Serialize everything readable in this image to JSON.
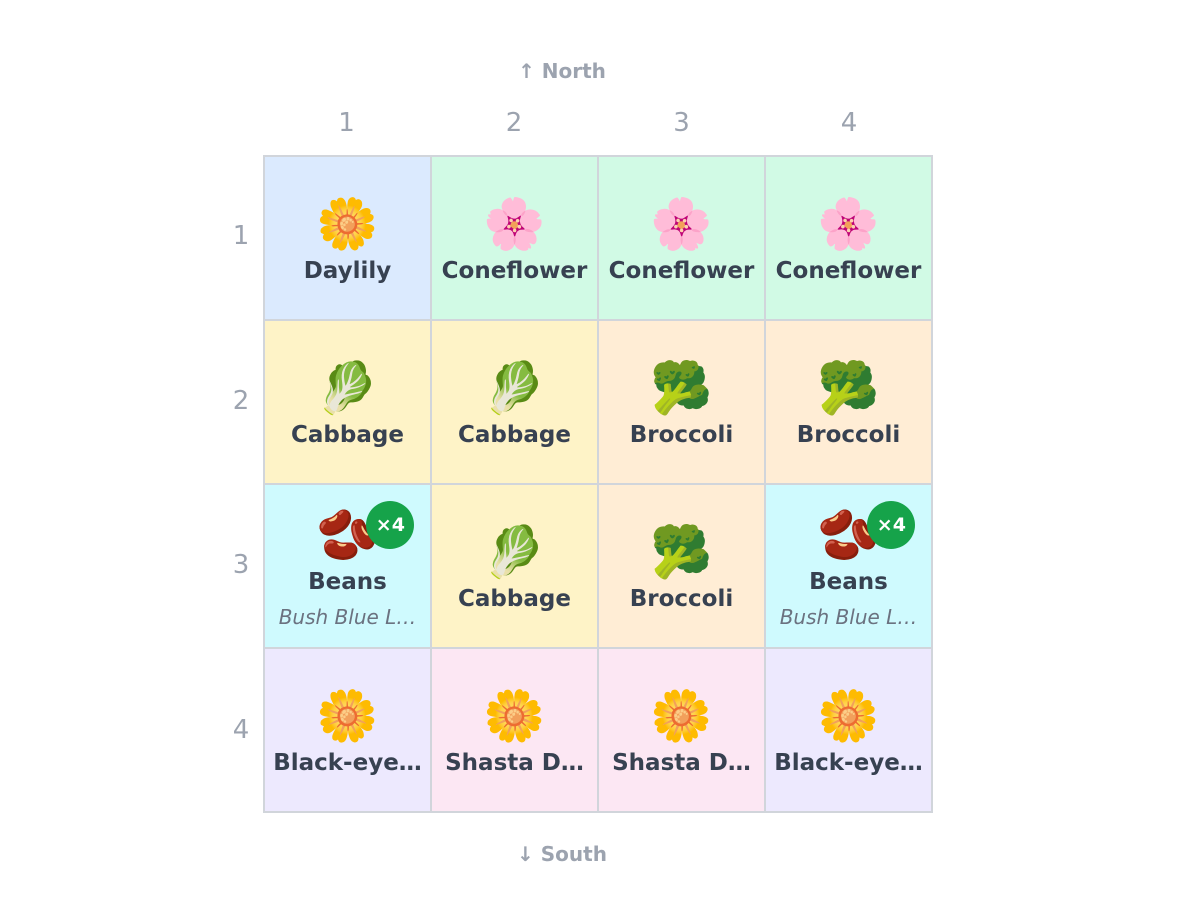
{
  "compass": {
    "north": "↑ North",
    "south": "↓ South"
  },
  "columns": [
    "1",
    "2",
    "3",
    "4"
  ],
  "rows": [
    {
      "label": "1",
      "cells": [
        {
          "icon": "🌼",
          "name": "Daylily",
          "color": "#dbeafe"
        },
        {
          "icon": "🌸",
          "name": "Coneflower",
          "color": "#d1fae5"
        },
        {
          "icon": "🌸",
          "name": "Coneflower",
          "color": "#d1fae5"
        },
        {
          "icon": "🌸",
          "name": "Coneflower",
          "color": "#d1fae5"
        }
      ]
    },
    {
      "label": "2",
      "cells": [
        {
          "icon": "🥬",
          "name": "Cabbage",
          "color": "#fef3c7"
        },
        {
          "icon": "🥬",
          "name": "Cabbage",
          "color": "#fef3c7"
        },
        {
          "icon": "🥦",
          "name": "Broccoli",
          "color": "#ffedd5"
        },
        {
          "icon": "🥦",
          "name": "Broccoli",
          "color": "#ffedd5"
        }
      ]
    },
    {
      "label": "3",
      "cells": [
        {
          "icon": "🫘",
          "name": "Beans",
          "badge": "×4",
          "variety": "Bush Blue L…",
          "color": "#cffafe"
        },
        {
          "icon": "🥬",
          "name": "Cabbage",
          "color": "#fef3c7"
        },
        {
          "icon": "🥦",
          "name": "Broccoli",
          "color": "#ffedd5"
        },
        {
          "icon": "🫘",
          "name": "Beans",
          "badge": "×4",
          "variety": "Bush Blue L…",
          "color": "#cffafe"
        }
      ]
    },
    {
      "label": "4",
      "cells": [
        {
          "icon": "🌼",
          "name": "Black-eye…",
          "color": "#ede9fe"
        },
        {
          "icon": "🌼",
          "name": "Shasta D…",
          "color": "#fce7f3"
        },
        {
          "icon": "🌼",
          "name": "Shasta D…",
          "color": "#fce7f3"
        },
        {
          "icon": "🌼",
          "name": "Black-eye…",
          "color": "#ede9fe"
        }
      ]
    }
  ]
}
